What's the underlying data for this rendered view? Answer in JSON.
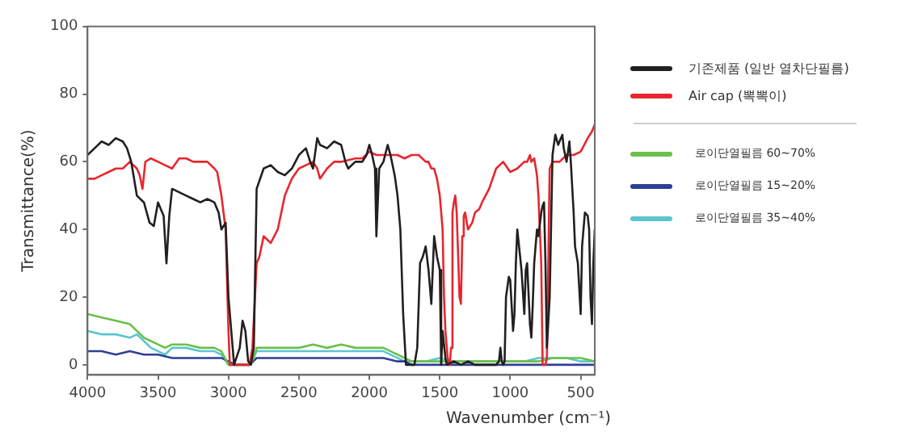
{
  "chart_data": {
    "type": "line",
    "xlabel": "Wavenumber (cm⁻¹)",
    "ylabel": "Transmittance(%)",
    "xlim": [
      4000,
      400
    ],
    "xticks": [
      4000,
      3500,
      3000,
      2500,
      2000,
      1500,
      1000,
      500
    ],
    "ylim": [
      -3,
      100
    ],
    "yticks": [
      0,
      20,
      40,
      60,
      80,
      100
    ],
    "grid": false,
    "legend": "right",
    "marker": "none",
    "line_style": "solid",
    "series": [
      {
        "name": "기존제품 (일반 열차단필름)",
        "color": "#231f20",
        "x": [
          4000,
          3950,
          3900,
          3850,
          3800,
          3750,
          3720,
          3690,
          3650,
          3600,
          3560,
          3530,
          3500,
          3460,
          3440,
          3420,
          3400,
          3350,
          3300,
          3250,
          3200,
          3150,
          3100,
          3070,
          3050,
          3020,
          3000,
          2960,
          2920,
          2900,
          2880,
          2860,
          2840,
          2820,
          2800,
          2750,
          2700,
          2650,
          2600,
          2550,
          2500,
          2450,
          2420,
          2400,
          2370,
          2350,
          2300,
          2250,
          2200,
          2170,
          2150,
          2100,
          2050,
          2020,
          2000,
          1980,
          1960,
          1950,
          1930,
          1900,
          1870,
          1850,
          1820,
          1800,
          1780,
          1760,
          1740,
          1700,
          1680,
          1660,
          1640,
          1620,
          1600,
          1580,
          1560,
          1540,
          1520,
          1500,
          1490,
          1480,
          1460,
          1450,
          1400,
          1350,
          1300,
          1250,
          1200,
          1150,
          1100,
          1080,
          1070,
          1060,
          1050,
          1040,
          1030,
          1010,
          1000,
          980,
          970,
          960,
          950,
          930,
          920,
          900,
          890,
          880,
          860,
          850,
          840,
          830,
          810,
          800,
          780,
          770,
          760,
          750,
          740,
          720,
          700,
          680,
          660,
          650,
          630,
          620,
          600,
          580,
          570,
          550,
          540,
          520,
          500,
          490,
          470,
          450,
          440,
          430,
          420,
          410,
          400
        ],
        "values": [
          62,
          64,
          66,
          65,
          67,
          66,
          64,
          60,
          50,
          48,
          42,
          41,
          48,
          44,
          30,
          44,
          52,
          51,
          50,
          49,
          48,
          49,
          48,
          45,
          40,
          42,
          20,
          0,
          5,
          13,
          10,
          1,
          0,
          5,
          52,
          58,
          59,
          57,
          56,
          58,
          62,
          64,
          60,
          58,
          67,
          65,
          64,
          66,
          65,
          60,
          58,
          60,
          60,
          62,
          65,
          62,
          58,
          38,
          58,
          60,
          65,
          62,
          56,
          50,
          40,
          15,
          0,
          0,
          0,
          5,
          30,
          32,
          35,
          28,
          18,
          38,
          32,
          28,
          0,
          10,
          2,
          0,
          1,
          0,
          1,
          0,
          0,
          0,
          0,
          1,
          5,
          1,
          0,
          1,
          20,
          26,
          25,
          10,
          15,
          30,
          40,
          32,
          28,
          15,
          28,
          30,
          12,
          8,
          18,
          30,
          40,
          38,
          45,
          47,
          48,
          30,
          5,
          20,
          62,
          68,
          65,
          66,
          68,
          64,
          60,
          66,
          60,
          45,
          35,
          30,
          15,
          35,
          45,
          44,
          40,
          20,
          12,
          30,
          40
        ]
      },
      {
        "name": "Air cap (뽁뽁이)",
        "color": "#e8262d",
        "x": [
          4000,
          3950,
          3900,
          3850,
          3800,
          3750,
          3700,
          3650,
          3630,
          3610,
          3590,
          3550,
          3500,
          3450,
          3400,
          3350,
          3300,
          3250,
          3200,
          3150,
          3100,
          3080,
          3050,
          3020,
          3000,
          2990,
          2950,
          2900,
          2850,
          2830,
          2800,
          2780,
          2750,
          2700,
          2650,
          2600,
          2550,
          2500,
          2450,
          2400,
          2370,
          2350,
          2300,
          2250,
          2200,
          2100,
          2050,
          2000,
          1950,
          1900,
          1850,
          1800,
          1750,
          1700,
          1650,
          1600,
          1580,
          1560,
          1540,
          1520,
          1500,
          1480,
          1470,
          1460,
          1450,
          1440,
          1430,
          1420,
          1410,
          1400,
          1390,
          1380,
          1360,
          1350,
          1340,
          1330,
          1320,
          1300,
          1270,
          1250,
          1220,
          1200,
          1150,
          1100,
          1050,
          1000,
          950,
          900,
          880,
          860,
          850,
          830,
          810,
          800,
          780,
          770,
          760,
          750,
          740,
          730,
          720,
          700,
          680,
          650,
          600,
          550,
          500,
          450,
          420,
          400
        ],
        "values": [
          55,
          55,
          56,
          57,
          58,
          58,
          60,
          58,
          56,
          52,
          60,
          61,
          60,
          59,
          58,
          61,
          61,
          60,
          60,
          60,
          58,
          57,
          50,
          40,
          10,
          0,
          0,
          0,
          0,
          5,
          30,
          32,
          38,
          36,
          40,
          50,
          55,
          58,
          59,
          60,
          58,
          55,
          58,
          60,
          60,
          61,
          61,
          63,
          62,
          62,
          62,
          62,
          61,
          62,
          62,
          60,
          60,
          58,
          58,
          55,
          50,
          40,
          20,
          10,
          5,
          0,
          0,
          5,
          45,
          48,
          50,
          45,
          20,
          18,
          38,
          44,
          45,
          40,
          42,
          45,
          46,
          48,
          52,
          58,
          60,
          57,
          58,
          60,
          60,
          62,
          60,
          61,
          56,
          50,
          30,
          0,
          0,
          0,
          2,
          30,
          58,
          60,
          60,
          60,
          62,
          62,
          63,
          67,
          69,
          71
        ]
      },
      {
        "name": "로이단열필름 60~70%",
        "color": "#6cbf4b",
        "x": [
          4000,
          3900,
          3800,
          3700,
          3650,
          3600,
          3550,
          3500,
          3450,
          3400,
          3300,
          3200,
          3100,
          3050,
          3000,
          2950,
          2900,
          2850,
          2820,
          2800,
          2700,
          2600,
          2500,
          2400,
          2300,
          2200,
          2100,
          2000,
          1900,
          1850,
          1800,
          1750,
          1700,
          1600,
          1500,
          1400,
          1300,
          1200,
          1100,
          1000,
          900,
          800,
          700,
          600,
          500,
          400
        ],
        "values": [
          15,
          14,
          13,
          12,
          10,
          8,
          7,
          6,
          5,
          6,
          6,
          5,
          5,
          4,
          0,
          0,
          0,
          0,
          2,
          5,
          5,
          5,
          5,
          6,
          5,
          6,
          5,
          5,
          5,
          4,
          3,
          2,
          1,
          1,
          1,
          1,
          1,
          1,
          1,
          1,
          1,
          1,
          2,
          2,
          2,
          1
        ]
      },
      {
        "name": "로이단열필름 15~20%",
        "color": "#2e3f94",
        "x": [
          4000,
          3900,
          3800,
          3700,
          3600,
          3500,
          3400,
          3300,
          3200,
          3100,
          3050,
          3000,
          2950,
          2900,
          2850,
          2800,
          2700,
          2500,
          2300,
          2100,
          2000,
          1900,
          1800,
          1750,
          1700,
          1500,
          1300,
          1100,
          900,
          700,
          500,
          400
        ],
        "values": [
          4,
          4,
          3,
          4,
          3,
          3,
          2,
          2,
          2,
          2,
          2,
          1,
          0,
          0,
          0,
          2,
          2,
          2,
          2,
          2,
          2,
          2,
          1,
          1,
          0,
          0,
          0,
          0,
          0,
          0,
          0,
          0
        ]
      },
      {
        "name": "로이단열필름 35~40%",
        "color": "#5cc6d0",
        "x": [
          4000,
          3900,
          3800,
          3700,
          3650,
          3600,
          3550,
          3500,
          3450,
          3400,
          3300,
          3200,
          3100,
          3050,
          3000,
          2950,
          2900,
          2850,
          2800,
          2700,
          2600,
          2500,
          2400,
          2300,
          2200,
          2100,
          2000,
          1900,
          1800,
          1750,
          1700,
          1600,
          1500,
          1400,
          1300,
          1200,
          1100,
          1000,
          900,
          800,
          700,
          600,
          500,
          400
        ],
        "values": [
          10,
          9,
          9,
          8,
          9,
          7,
          5,
          4,
          3,
          5,
          5,
          4,
          4,
          3,
          0,
          0,
          0,
          0,
          4,
          4,
          4,
          4,
          4,
          4,
          4,
          4,
          4,
          4,
          2,
          1,
          1,
          1,
          2,
          1,
          1,
          1,
          1,
          1,
          1,
          2,
          2,
          2,
          1,
          1
        ]
      }
    ]
  }
}
